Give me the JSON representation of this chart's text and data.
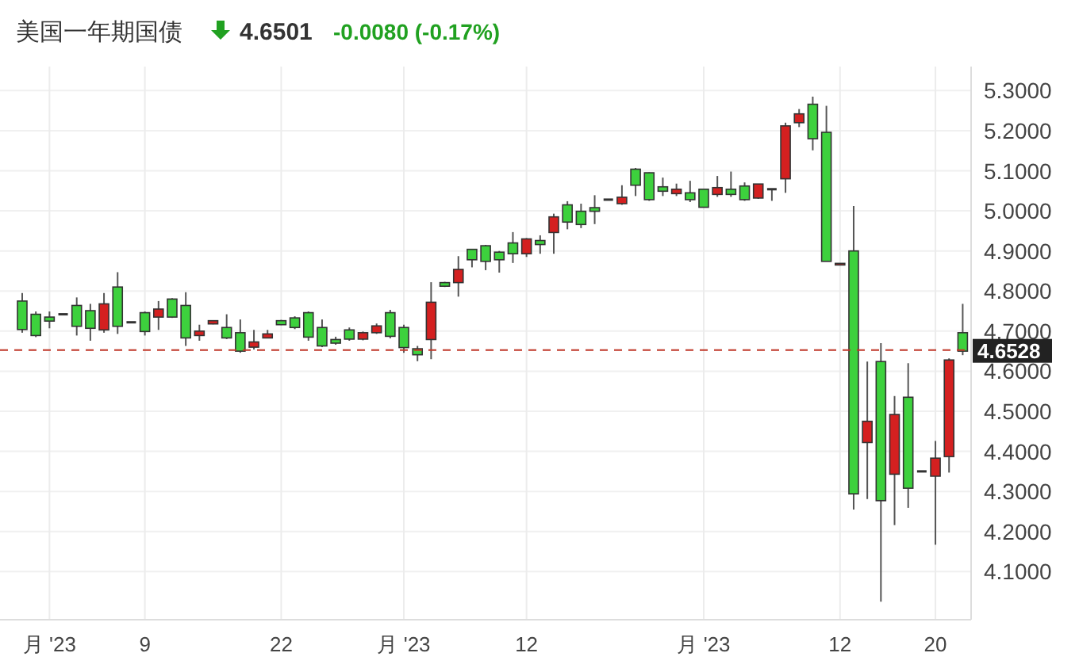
{
  "chart_data": {
    "type": "candlestick",
    "title": "美国一年期国债",
    "subtitle": "4.6501",
    "annotations": [
      "-0.0080 (-0.17%)"
    ],
    "categories": [
      null,
      null,
      "月 '23",
      null,
      null,
      null,
      null,
      null,
      null,
      "9",
      null,
      null,
      null,
      null,
      null,
      null,
      null,
      null,
      null,
      "22",
      null,
      null,
      null,
      null,
      null,
      null,
      null,
      null,
      "月 '23",
      null,
      null,
      null,
      null,
      null,
      null,
      null,
      null,
      "12",
      null,
      null,
      null,
      null,
      null,
      null,
      null,
      null,
      null,
      null,
      null,
      null,
      "月 '23",
      null,
      null,
      null,
      null,
      null,
      null,
      null,
      null,
      null,
      "12",
      null,
      null,
      null,
      null,
      null,
      null,
      "20",
      null,
      null
    ],
    "ohlc": [
      [
        4.775,
        4.795,
        4.696,
        4.704
      ],
      [
        4.742,
        4.749,
        4.685,
        4.689
      ],
      [
        4.735,
        4.749,
        4.707,
        4.725
      ],
      [
        4.742,
        4.742,
        4.742,
        4.742
      ],
      [
        4.764,
        4.784,
        4.689,
        4.712
      ],
      [
        4.751,
        4.768,
        4.676,
        4.707
      ],
      [
        4.703,
        4.795,
        4.696,
        4.768
      ],
      [
        4.81,
        4.847,
        4.693,
        4.712
      ],
      [
        4.722,
        4.722,
        4.722,
        4.722
      ],
      [
        4.746,
        4.749,
        4.689,
        4.699
      ],
      [
        4.735,
        4.775,
        4.703,
        4.755
      ],
      [
        4.78,
        4.782,
        4.733,
        4.735
      ],
      [
        4.764,
        4.797,
        4.663,
        4.683
      ],
      [
        4.689,
        4.716,
        4.676,
        4.7
      ],
      [
        4.718,
        4.727,
        4.717,
        4.726
      ],
      [
        4.709,
        4.742,
        4.68,
        4.683
      ],
      [
        4.696,
        4.729,
        4.646,
        4.65
      ],
      [
        4.66,
        4.703,
        4.654,
        4.673
      ],
      [
        4.683,
        4.703,
        4.682,
        4.693
      ],
      [
        4.726,
        4.728,
        4.715,
        4.716
      ],
      [
        4.733,
        4.737,
        4.705,
        4.709
      ],
      [
        4.746,
        4.749,
        4.676,
        4.685
      ],
      [
        4.709,
        4.729,
        4.66,
        4.663
      ],
      [
        4.679,
        4.686,
        4.666,
        4.67
      ],
      [
        4.703,
        4.709,
        4.676,
        4.68
      ],
      [
        4.68,
        4.699,
        4.677,
        4.696
      ],
      [
        4.696,
        4.719,
        4.693,
        4.713
      ],
      [
        4.746,
        4.753,
        4.682,
        4.687
      ],
      [
        4.709,
        4.716,
        4.646,
        4.659
      ],
      [
        4.656,
        4.663,
        4.625,
        4.641
      ],
      [
        4.679,
        4.822,
        4.63,
        4.772
      ],
      [
        4.821,
        4.823,
        4.81,
        4.812
      ],
      [
        4.821,
        4.887,
        4.786,
        4.854
      ],
      [
        4.904,
        4.905,
        4.859,
        4.878
      ],
      [
        4.913,
        4.915,
        4.852,
        4.874
      ],
      [
        4.897,
        4.9,
        4.846,
        4.878
      ],
      [
        4.92,
        4.947,
        4.87,
        4.893
      ],
      [
        4.893,
        4.932,
        4.885,
        4.93
      ],
      [
        4.926,
        4.939,
        4.893,
        4.916
      ],
      [
        4.946,
        4.993,
        4.893,
        4.985
      ],
      [
        5.015,
        5.024,
        4.954,
        4.972
      ],
      [
        4.999,
        5.018,
        4.957,
        4.966
      ],
      [
        5.008,
        5.039,
        4.967,
        4.999
      ],
      [
        5.028,
        5.028,
        5.028,
        5.028
      ],
      [
        5.018,
        5.064,
        5.015,
        5.034
      ],
      [
        5.104,
        5.107,
        5.037,
        5.064
      ],
      [
        5.095,
        5.096,
        5.025,
        5.028
      ],
      [
        5.06,
        5.083,
        5.037,
        5.049
      ],
      [
        5.043,
        5.068,
        5.037,
        5.054
      ],
      [
        5.045,
        5.075,
        5.022,
        5.028
      ],
      [
        5.054,
        5.054,
        5.009,
        5.009
      ],
      [
        5.041,
        5.087,
        5.035,
        5.058
      ],
      [
        5.054,
        5.098,
        5.035,
        5.041
      ],
      [
        5.062,
        5.071,
        5.025,
        5.028
      ],
      [
        5.032,
        5.067,
        5.03,
        5.067
      ],
      [
        5.054,
        5.054,
        5.025,
        5.054
      ],
      [
        5.08,
        5.22,
        5.045,
        5.212
      ],
      [
        5.22,
        5.254,
        5.209,
        5.242
      ],
      [
        5.266,
        5.285,
        5.151,
        5.18
      ],
      [
        5.196,
        5.262,
        4.874,
        4.874
      ],
      [
        4.865,
        4.869,
        4.865,
        4.869
      ],
      [
        4.9,
        5.012,
        4.255,
        4.294
      ],
      [
        4.422,
        4.624,
        4.281,
        4.475
      ],
      [
        4.624,
        4.67,
        4.025,
        4.277
      ],
      [
        4.343,
        4.538,
        4.216,
        4.492
      ],
      [
        4.535,
        4.62,
        4.259,
        4.308
      ],
      [
        4.35,
        4.35,
        4.35,
        4.35
      ],
      [
        4.338,
        4.426,
        4.167,
        4.383
      ],
      [
        4.387,
        4.632,
        4.347,
        4.628
      ],
      [
        4.696,
        4.768,
        4.64,
        4.65
      ]
    ],
    "colors": [
      "#3dd13d",
      "#3dd13d",
      "#3dd13d",
      "#333333",
      "#3dd13d",
      "#3dd13d",
      "#d42020",
      "#3dd13d",
      "#333333",
      "#3dd13d",
      "#d42020",
      "#3dd13d",
      "#3dd13d",
      "#d42020",
      "#d42020",
      "#3dd13d",
      "#3dd13d",
      "#d42020",
      "#d42020",
      "#3dd13d",
      "#3dd13d",
      "#3dd13d",
      "#3dd13d",
      "#3dd13d",
      "#3dd13d",
      "#d42020",
      "#d42020",
      "#3dd13d",
      "#3dd13d",
      "#3dd13d",
      "#d42020",
      "#3dd13d",
      "#d42020",
      "#3dd13d",
      "#3dd13d",
      "#3dd13d",
      "#3dd13d",
      "#d42020",
      "#3dd13d",
      "#d42020",
      "#3dd13d",
      "#3dd13d",
      "#3dd13d",
      "#333333",
      "#d42020",
      "#3dd13d",
      "#3dd13d",
      "#3dd13d",
      "#d42020",
      "#3dd13d",
      "#3dd13d",
      "#d42020",
      "#3dd13d",
      "#3dd13d",
      "#d42020",
      "#333333",
      "#d42020",
      "#d42020",
      "#3dd13d",
      "#3dd13d",
      "#d42020",
      "#3dd13d",
      "#d42020",
      "#3dd13d",
      "#d42020",
      "#3dd13d",
      "#333333",
      "#d42020",
      "#d42020",
      "#3dd13d"
    ],
    "ylim": [
      3.98,
      5.36
    ],
    "yticks": [
      {
        "value": 4.1,
        "label": "4.1000"
      },
      {
        "value": 4.2,
        "label": "4.2000"
      },
      {
        "value": 4.3,
        "label": "4.3000"
      },
      {
        "value": 4.4,
        "label": "4.4000"
      },
      {
        "value": 4.5,
        "label": "4.5000"
      },
      {
        "value": 4.6,
        "label": "4.6000"
      },
      {
        "value": 4.7,
        "label": "4.7000"
      },
      {
        "value": 4.8,
        "label": "4.8000"
      },
      {
        "value": 4.9,
        "label": "4.9000"
      },
      {
        "value": 5.0,
        "label": "5.0000"
      },
      {
        "value": 5.1,
        "label": "5.1000"
      },
      {
        "value": 5.2,
        "label": "5.2000"
      },
      {
        "value": 5.3,
        "label": "5.3000"
      }
    ],
    "ref_lines": [
      {
        "axis": "y",
        "value": 4.6528,
        "label": "4.6528",
        "color": "#c0392b",
        "line_style": "dashed"
      }
    ],
    "grid": true
  }
}
